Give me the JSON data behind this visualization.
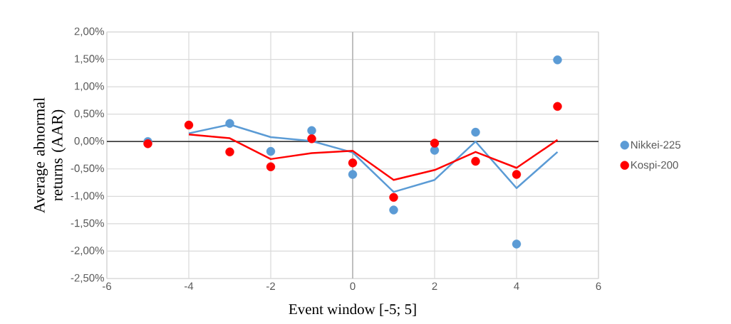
{
  "chart_data": {
    "type": "scatter",
    "xlabel": "Event window [-5; 5]",
    "ylabel": "Average abnormal returns (AAR)",
    "x": [
      -5,
      -4,
      -3,
      -2,
      -1,
      0,
      1,
      2,
      3,
      4,
      5
    ],
    "series": [
      {
        "name": "Nikkei-225",
        "color": "#5b9bd5",
        "values": [
          0.0,
          null,
          0.33,
          -0.18,
          0.2,
          -0.6,
          -1.25,
          -0.16,
          0.17,
          -1.87,
          1.49
        ]
      },
      {
        "name": "Kospi-200",
        "color": "#ff0000",
        "values": [
          -0.04,
          0.3,
          -0.19,
          -0.46,
          0.05,
          -0.39,
          -1.02,
          -0.03,
          -0.36,
          -0.6,
          0.64
        ]
      },
      {
        "type": "line",
        "marker": "none",
        "color": "#5b9bd5",
        "x": [
          -4,
          -3,
          -2,
          -1,
          0,
          1,
          2,
          3,
          4,
          5
        ],
        "values": [
          0.15,
          0.31,
          0.08,
          0.01,
          -0.2,
          -0.92,
          -0.7,
          0.0,
          -0.85,
          -0.19
        ]
      },
      {
        "type": "line",
        "marker": "none",
        "color": "#ff0000",
        "x": [
          -4,
          -3,
          -2,
          -1,
          0,
          1,
          2,
          3,
          4,
          5
        ],
        "values": [
          0.13,
          0.06,
          -0.32,
          -0.21,
          -0.17,
          -0.7,
          -0.52,
          -0.19,
          -0.48,
          0.03
        ]
      }
    ],
    "xlim": [
      -6,
      6
    ],
    "xticks": [
      -6,
      -4,
      -2,
      0,
      2,
      4,
      6
    ],
    "ylim": [
      -2.5,
      2.0
    ],
    "yticks": [
      {
        "value": 2.0,
        "label": "2,00%"
      },
      {
        "value": 1.5,
        "label": "1,50%"
      },
      {
        "value": 1.0,
        "label": "1,00%"
      },
      {
        "value": 0.5,
        "label": "0,50%"
      },
      {
        "value": 0.0,
        "label": "0,00%"
      },
      {
        "value": -0.5,
        "label": "-0,50%"
      },
      {
        "value": -1.0,
        "label": "-1,00%"
      },
      {
        "value": -1.5,
        "label": "-1,50%"
      },
      {
        "value": -2.0,
        "label": "-2,00%"
      },
      {
        "value": -2.5,
        "label": "-2,50%"
      }
    ],
    "grid": true,
    "legend": "right",
    "marker": "circle",
    "line_style": "solid"
  }
}
